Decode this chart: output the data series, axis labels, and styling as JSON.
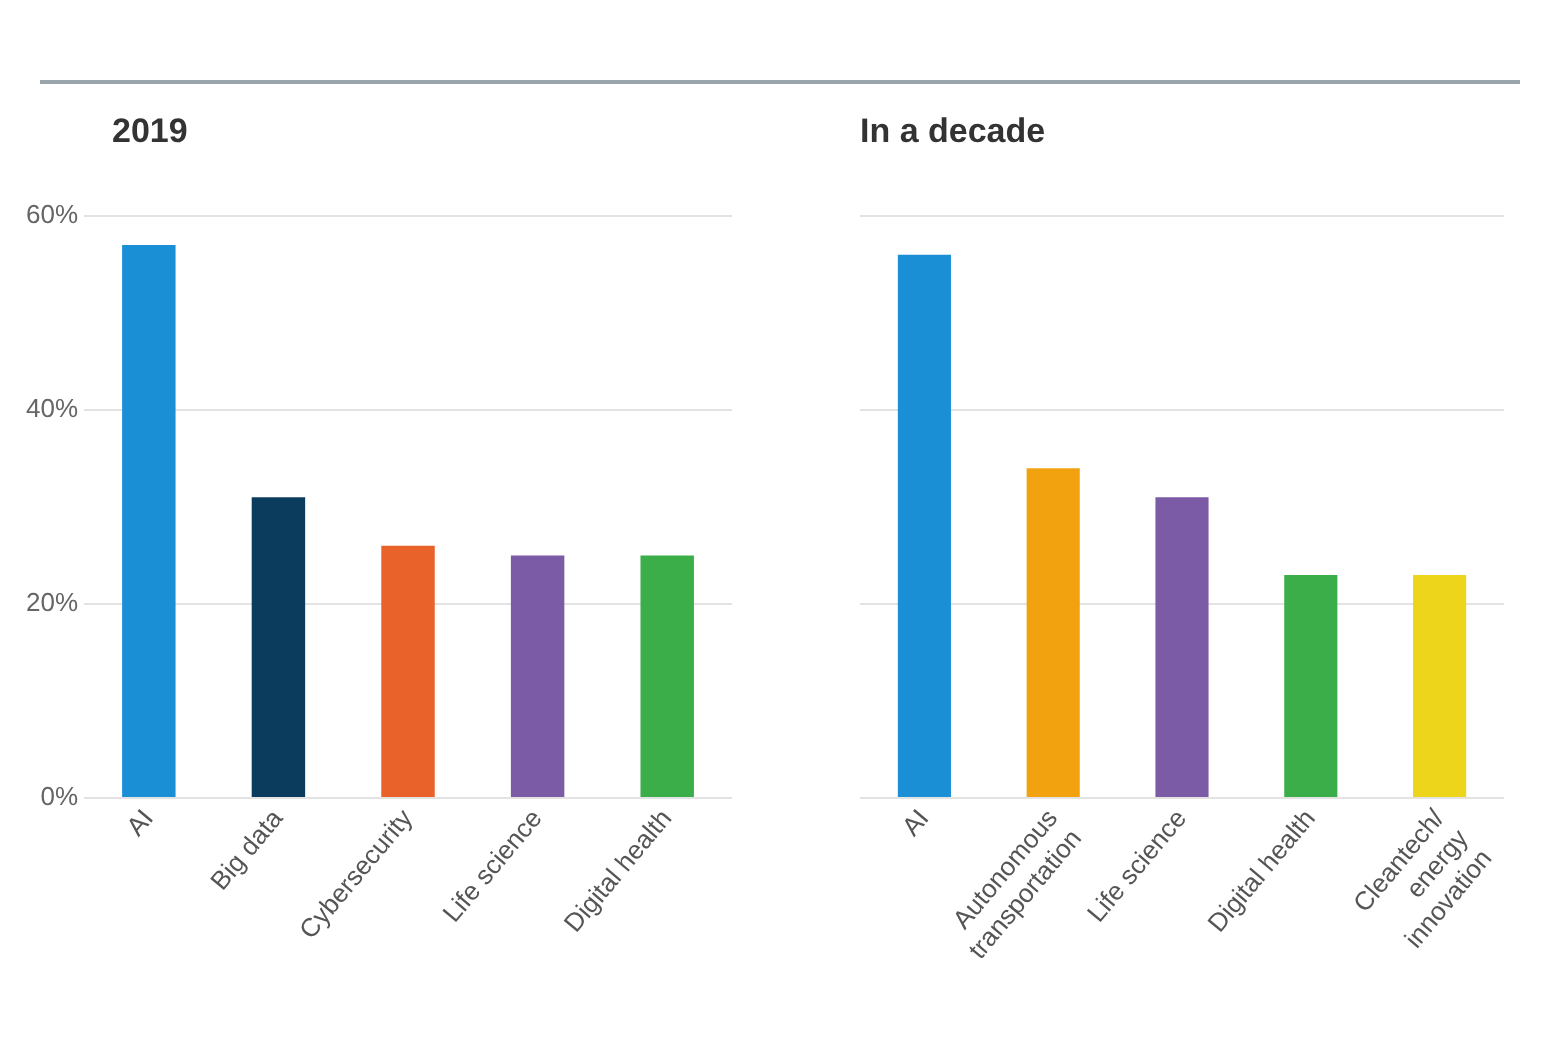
{
  "chart_data": [
    {
      "type": "bar",
      "title": "2019",
      "categories": [
        "AI",
        "Big data",
        "Cybersecurity",
        "Life science",
        "Digital health"
      ],
      "values": [
        57,
        31,
        26,
        25,
        25
      ],
      "colors": [
        "#1a8fd6",
        "#0b3c5d",
        "#e8622a",
        "#7b5aa6",
        "#3cae49"
      ],
      "ylim": [
        0,
        60
      ],
      "yticks": [
        {
          "value": 0,
          "label": "0%"
        },
        {
          "value": 20,
          "label": "20%"
        },
        {
          "value": 40,
          "label": "40%"
        },
        {
          "value": 60,
          "label": "60%"
        }
      ],
      "grid": "y",
      "legend": false
    },
    {
      "type": "bar",
      "title": "In a decade",
      "categories": [
        "AI",
        "Autonomous transportation",
        "Life science",
        "Digital health",
        "Cleantech/ energy innovation"
      ],
      "values": [
        56,
        34,
        31,
        23,
        23
      ],
      "colors": [
        "#1a8fd6",
        "#f2a10f",
        "#7b5aa6",
        "#3cae49",
        "#ecd51a"
      ],
      "ylim": [
        0,
        60
      ],
      "yticks": [
        0,
        20,
        40,
        60
      ],
      "grid": "y",
      "legend": false,
      "tick_labels": "x"
    }
  ]
}
